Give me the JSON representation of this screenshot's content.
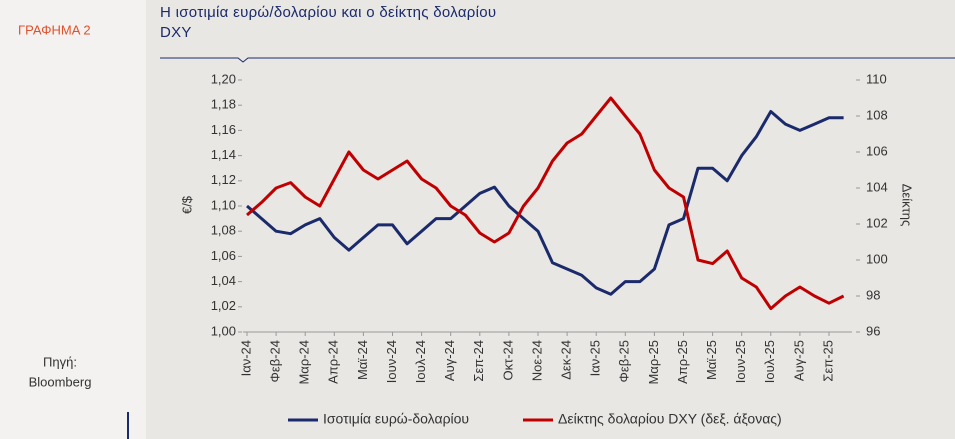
{
  "sidebar": {
    "label": "ΓΡΑΦΗΜΑ 2",
    "source_label": "Πηγή:",
    "source": "Bloomberg"
  },
  "chart_data": {
    "type": "line",
    "title_lines": [
      "Η ισοτιμία ευρώ/δολαρίου και ο δείκτης δολαρίου",
      "DXY"
    ],
    "y_label": "€/$",
    "y2_label": "Δείκτης",
    "categories": [
      "Ιαν-24",
      null,
      "Φεβ-24",
      null,
      "Μαρ-24",
      null,
      "Απρ-24",
      null,
      "Μαϊ-24",
      null,
      "Ιουν-24",
      null,
      "Ιουλ-24",
      null,
      "Αυγ-24",
      null,
      "Σεπ-24",
      null,
      "Οκτ-24",
      null,
      "Νοε-24",
      null,
      "Δεκ-24",
      null,
      "Ιαν-25",
      null,
      "Φεβ-25",
      null,
      "Μαρ-25",
      null,
      "Απρ-25",
      null,
      "Μαϊ-25",
      null,
      "Ιουν-25",
      null,
      "Ιουλ-25",
      null,
      "Αυγ-25",
      null,
      "Σεπ-25",
      null
    ],
    "series": [
      {
        "name": "Ισοτιμία ευρώ-δολαρίου",
        "color": "#1b2a6b",
        "axis": "y",
        "values": [
          1.1,
          1.09,
          1.08,
          1.078,
          1.085,
          1.09,
          1.075,
          1.065,
          1.075,
          1.085,
          1.085,
          1.07,
          1.08,
          1.09,
          1.09,
          1.1,
          1.11,
          1.115,
          1.1,
          1.09,
          1.08,
          1.055,
          1.05,
          1.045,
          1.035,
          1.03,
          1.04,
          1.04,
          1.05,
          1.085,
          1.09,
          1.13,
          1.13,
          1.12,
          1.14,
          1.155,
          1.175,
          1.165,
          1.16,
          1.165,
          1.17,
          1.17
        ]
      },
      {
        "name": "Δείκτης δολαρίου DXY (δεξ. άξονας)",
        "color": "#c00000",
        "axis": "y2",
        "values": [
          102.5,
          103.2,
          104.0,
          104.3,
          103.5,
          103.0,
          104.5,
          106,
          105,
          104.5,
          105,
          105.5,
          104.5,
          104,
          103,
          102.5,
          101.5,
          101,
          101.5,
          103,
          104,
          105.5,
          106.5,
          107,
          108,
          109,
          108,
          107,
          105,
          104,
          103.5,
          100,
          99.8,
          100.5,
          99,
          98.5,
          97.3,
          98,
          98.5,
          98,
          97.6,
          98
        ]
      }
    ],
    "ylim": [
      1.0,
      1.2
    ],
    "yticks": [
      {
        "value": 1.0,
        "label": "1,00"
      },
      {
        "value": 1.02,
        "label": "1,02"
      },
      {
        "value": 1.04,
        "label": "1,04"
      },
      {
        "value": 1.06,
        "label": "1,06"
      },
      {
        "value": 1.08,
        "label": "1,08"
      },
      {
        "value": 1.1,
        "label": "1,10"
      },
      {
        "value": 1.12,
        "label": "1,12"
      },
      {
        "value": 1.14,
        "label": "1,14"
      },
      {
        "value": 1.16,
        "label": "1,16"
      },
      {
        "value": 1.18,
        "label": "1,18"
      },
      {
        "value": 1.2,
        "label": "1,20"
      }
    ],
    "y2lim": [
      96,
      110
    ],
    "y2ticks": [
      96,
      98,
      100,
      102,
      104,
      106,
      108,
      110
    ],
    "grid": false,
    "legend": "bottom"
  }
}
